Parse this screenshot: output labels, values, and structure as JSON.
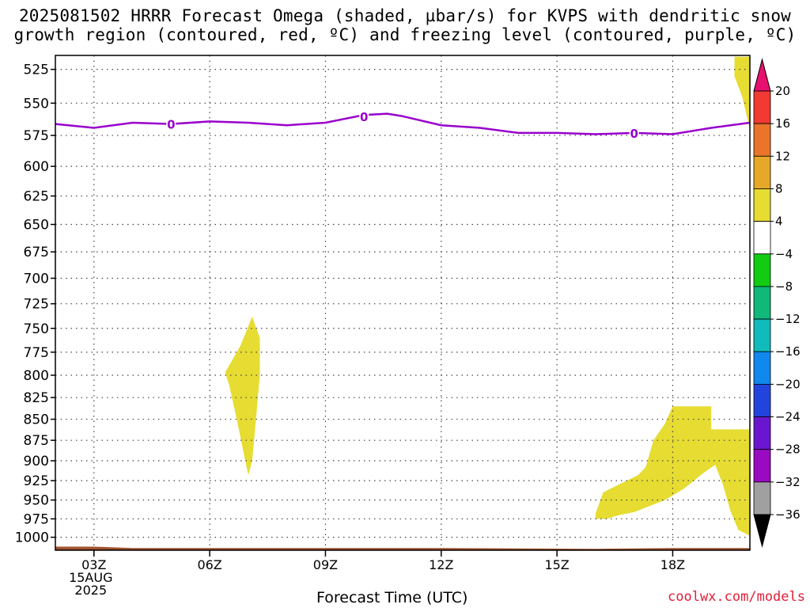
{
  "title": {
    "line1": "2025081502 HRRR Forecast Omega (shaded, µbar/s) for KVPS with dendritic snow",
    "line2": "growth region (contoured, red, ºC) and freezing level (contoured, purple, ºC)"
  },
  "credit": "coolwx.com/models",
  "chart_data": {
    "type": "heatmap",
    "xlabel": "Forecast Time (UTC)",
    "ylabel": "",
    "x_range_hours": [
      2,
      20
    ],
    "x_ticks": [
      {
        "hour": 3,
        "label": "03Z",
        "sub1": "15AUG",
        "sub2": "2025"
      },
      {
        "hour": 6,
        "label": "06Z"
      },
      {
        "hour": 9,
        "label": "09Z"
      },
      {
        "hour": 12,
        "label": "12Z"
      },
      {
        "hour": 15,
        "label": "15Z"
      },
      {
        "hour": 18,
        "label": "18Z"
      }
    ],
    "y_ticks": [
      525,
      550,
      575,
      600,
      625,
      650,
      675,
      700,
      725,
      750,
      775,
      800,
      825,
      850,
      875,
      900,
      925,
      950,
      975,
      1000
    ],
    "y_range_mb": [
      515,
      1018
    ],
    "y_scale": "log",
    "grid": true,
    "freezing_level": {
      "label": "0",
      "color": "#9900cc",
      "points": [
        [
          2,
          566
        ],
        [
          3,
          569
        ],
        [
          4,
          565
        ],
        [
          5,
          566
        ],
        [
          6,
          564
        ],
        [
          7,
          565
        ],
        [
          8,
          567
        ],
        [
          9,
          565
        ],
        [
          10,
          559
        ],
        [
          10.6,
          558
        ],
        [
          11,
          560
        ],
        [
          12,
          567
        ],
        [
          13,
          569
        ],
        [
          14,
          573
        ],
        [
          15,
          573
        ],
        [
          16,
          574
        ],
        [
          17,
          573
        ],
        [
          18,
          574
        ],
        [
          19,
          569
        ],
        [
          20,
          565
        ]
      ],
      "label_positions": [
        [
          5,
          566
        ],
        [
          10,
          560
        ],
        [
          17,
          573
        ]
      ]
    },
    "omega_regions": [
      {
        "color": "#e6dc32",
        "points": [
          [
            6.4,
            797
          ],
          [
            6.8,
            768
          ],
          [
            7.1,
            738
          ],
          [
            7.3,
            760
          ],
          [
            7.3,
            800
          ],
          [
            7.2,
            850
          ],
          [
            7.1,
            900
          ],
          [
            7.0,
            918
          ],
          [
            6.9,
            895
          ],
          [
            6.7,
            850
          ],
          [
            6.5,
            810
          ]
        ]
      },
      {
        "color": "#e6dc32",
        "points": [
          [
            16.0,
            968
          ],
          [
            16.2,
            940
          ],
          [
            16.6,
            930
          ],
          [
            17.1,
            918
          ],
          [
            17.3,
            908
          ],
          [
            17.5,
            875
          ],
          [
            17.8,
            855
          ],
          [
            18.0,
            835
          ],
          [
            19.0,
            835
          ],
          [
            19.0,
            862
          ],
          [
            19.9,
            862
          ],
          [
            20.0,
            862
          ],
          [
            20.0,
            998
          ],
          [
            19.7,
            990
          ],
          [
            19.5,
            965
          ],
          [
            19.3,
            930
          ],
          [
            19.1,
            905
          ],
          [
            18.8,
            915
          ],
          [
            18.3,
            935
          ],
          [
            17.8,
            950
          ],
          [
            17.4,
            958
          ],
          [
            17.0,
            966
          ],
          [
            16.6,
            970
          ],
          [
            16.3,
            975
          ],
          [
            16.0,
            975
          ]
        ]
      },
      {
        "color": "#e6dc32",
        "points": [
          [
            19.6,
            516
          ],
          [
            20.0,
            516
          ],
          [
            20.0,
            570
          ],
          [
            19.8,
            545
          ],
          [
            19.6,
            530
          ]
        ]
      }
    ],
    "ground": {
      "color": "#a0522d",
      "top_mb": [
        [
          2,
          1013
        ],
        [
          3,
          1013
        ],
        [
          4,
          1015
        ],
        [
          12,
          1015
        ],
        [
          16,
          1016
        ],
        [
          18,
          1015
        ],
        [
          20,
          1015
        ]
      ]
    },
    "colorbar": {
      "levels": [
        "20",
        "16",
        "12",
        "8",
        "4",
        "−4",
        "−8",
        "−12",
        "−16",
        "−20",
        "−24",
        "−28",
        "−32",
        "−36"
      ],
      "colors": [
        "#e8106e",
        "#f03a32",
        "#e9742a",
        "#e7a82a",
        "#e6dc32",
        "#ffffff",
        "#11cc11",
        "#10b87a",
        "#10bbbb",
        "#1188ee",
        "#2244dd",
        "#6a16d0",
        "#9a0ac2",
        "#a0a0a0",
        "#000000"
      ]
    }
  }
}
